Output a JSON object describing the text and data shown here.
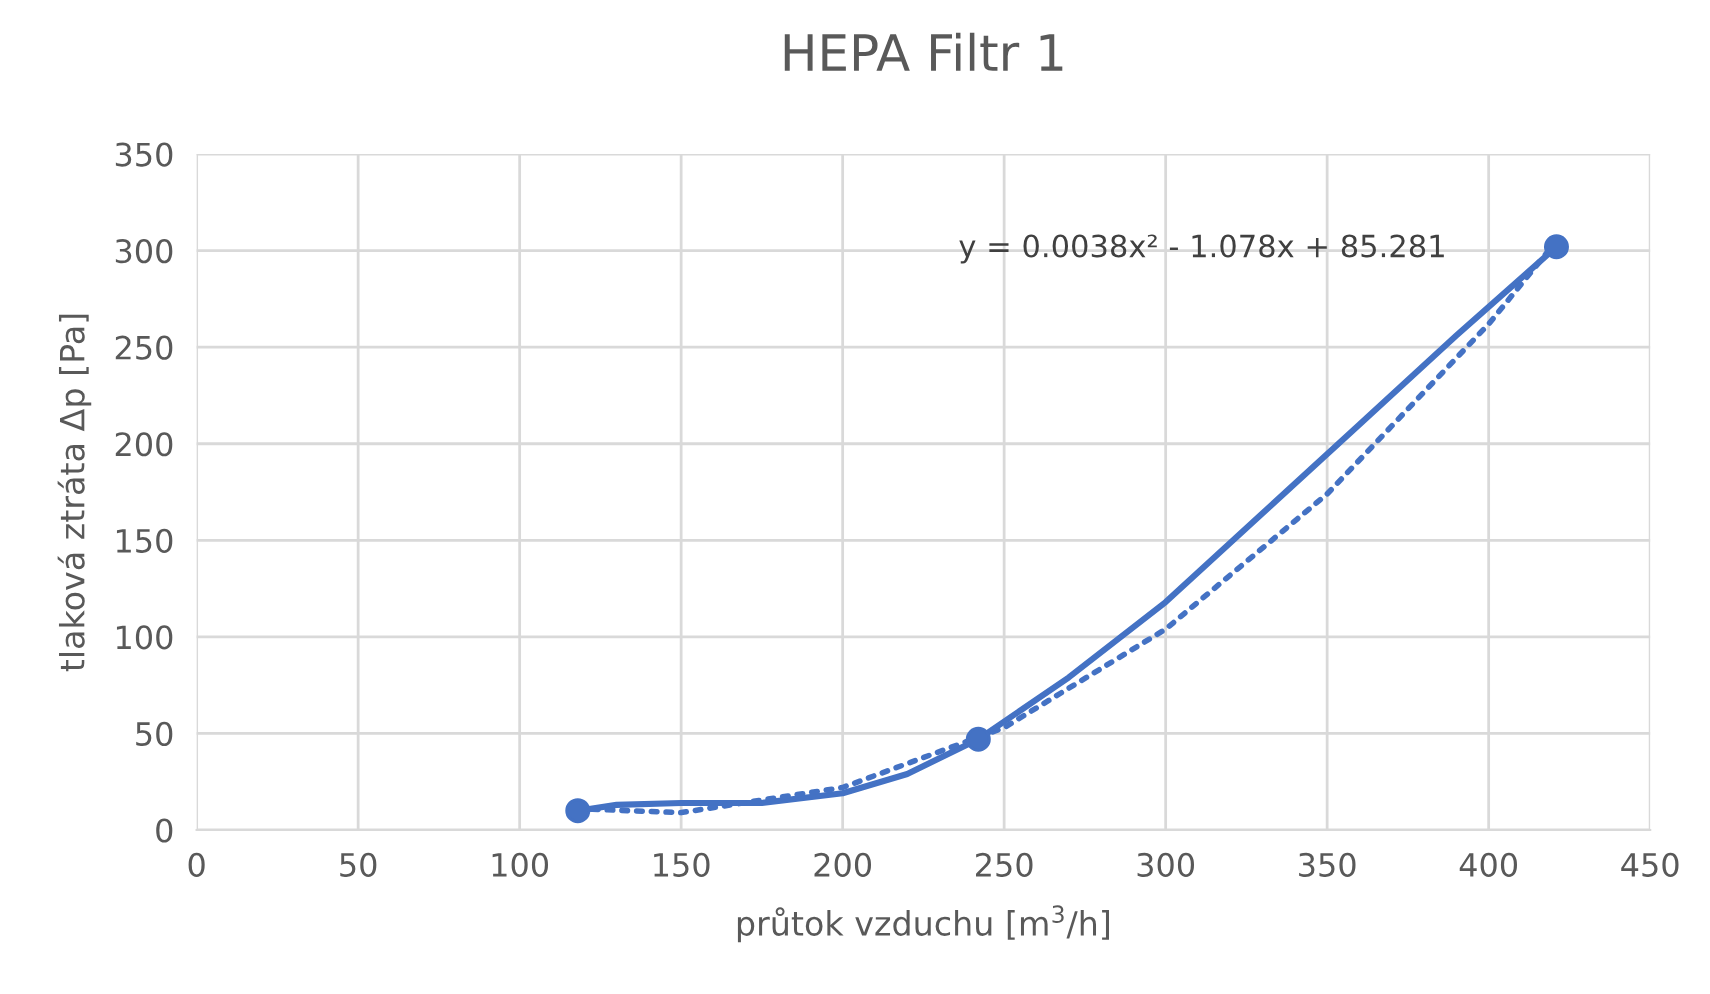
{
  "chart_data": {
    "type": "line",
    "title": "HEPA Filtr 1",
    "xlabel": "průtok vzduchu [m$^{3}$/h]",
    "ylabel": "tlaková ztráta Δp [Pa]",
    "x": [
      118,
      242,
      421
    ],
    "series": [
      {
        "color": "#4472c4",
        "x": [
          118,
          130,
          150,
          175,
          200,
          220,
          242,
          270,
          300,
          330,
          360,
          390,
          421
        ],
        "values": [
          10,
          13,
          14,
          14,
          19,
          29,
          47,
          79,
          118,
          164,
          210,
          256,
          302
        ],
        "marker": "none",
        "line_style": "solid"
      },
      {
        "type": "scatter",
        "color": "#4472c4",
        "values": [
          10,
          47,
          302
        ],
        "marker": "circle"
      },
      {
        "color": "#4472c4",
        "x": [
          118,
          150,
          200,
          250,
          300,
          350,
          400,
          421
        ],
        "values": [
          11,
          9,
          22,
          53,
          104,
          174,
          262,
          305
        ],
        "marker": "none",
        "line_style": "dotted"
      }
    ],
    "annotations": [
      "y = 0.0038x² - 1.078x + 85.281"
    ],
    "xlim": [
      0,
      450
    ],
    "xticks": [
      0,
      50,
      100,
      150,
      200,
      250,
      300,
      350,
      400,
      450
    ],
    "ylim": [
      0,
      350
    ],
    "yticks": [
      0,
      50,
      100,
      150,
      200,
      250,
      300,
      350
    ],
    "grid": true,
    "legend": false
  }
}
